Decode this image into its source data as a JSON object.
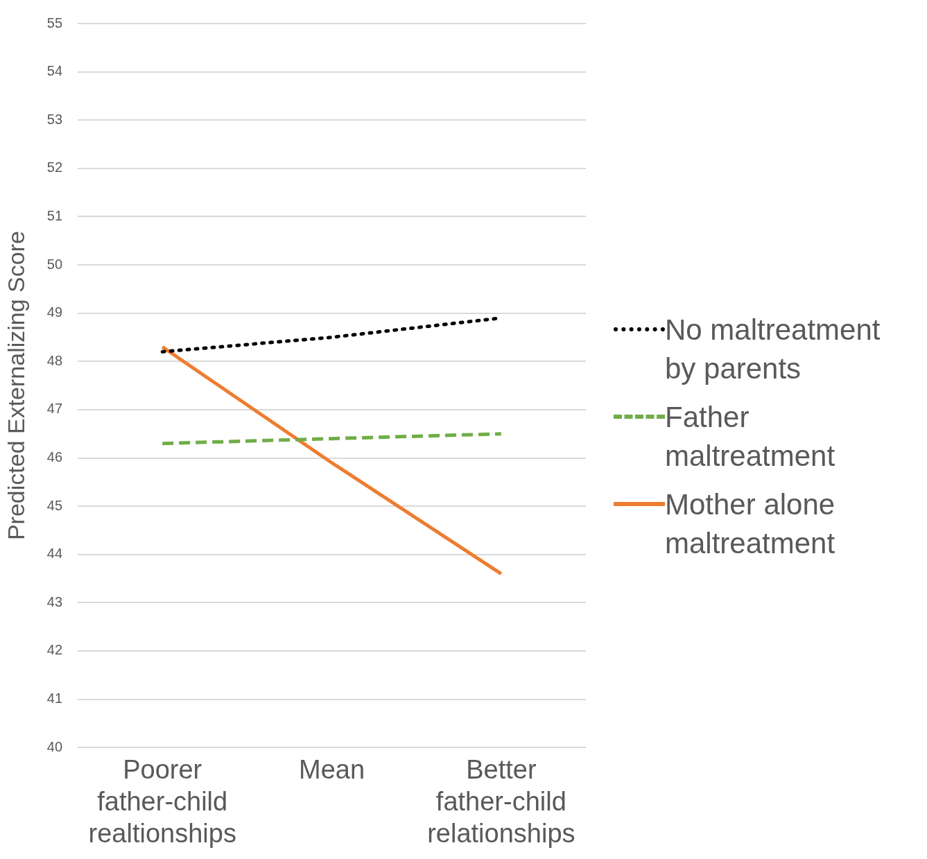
{
  "chart_data": {
    "type": "line",
    "ylabel": "Predicted Externalizing Score",
    "categories": [
      "Poorer father-child realtionships",
      "Mean",
      "Better father-child relationships"
    ],
    "series": [
      {
        "name": "No maltreatment by parents",
        "color": "#000000",
        "line_style": "dotted",
        "values": [
          48.2,
          48.5,
          48.9
        ]
      },
      {
        "name": "Father maltreatment",
        "color": "#70ad47",
        "line_style": "dashed",
        "values": [
          46.3,
          46.4,
          46.5
        ]
      },
      {
        "name": "Mother alone maltreatment",
        "color": "#ed7d31",
        "line_style": "solid",
        "values": [
          48.3,
          45.9,
          43.6
        ]
      }
    ],
    "ylim": [
      40,
      55
    ],
    "yticks": [
      40,
      41,
      42,
      43,
      44,
      45,
      46,
      47,
      48,
      49,
      50,
      51,
      52,
      53,
      54,
      55
    ],
    "grid": "y",
    "legend": "right",
    "marker": "none"
  }
}
